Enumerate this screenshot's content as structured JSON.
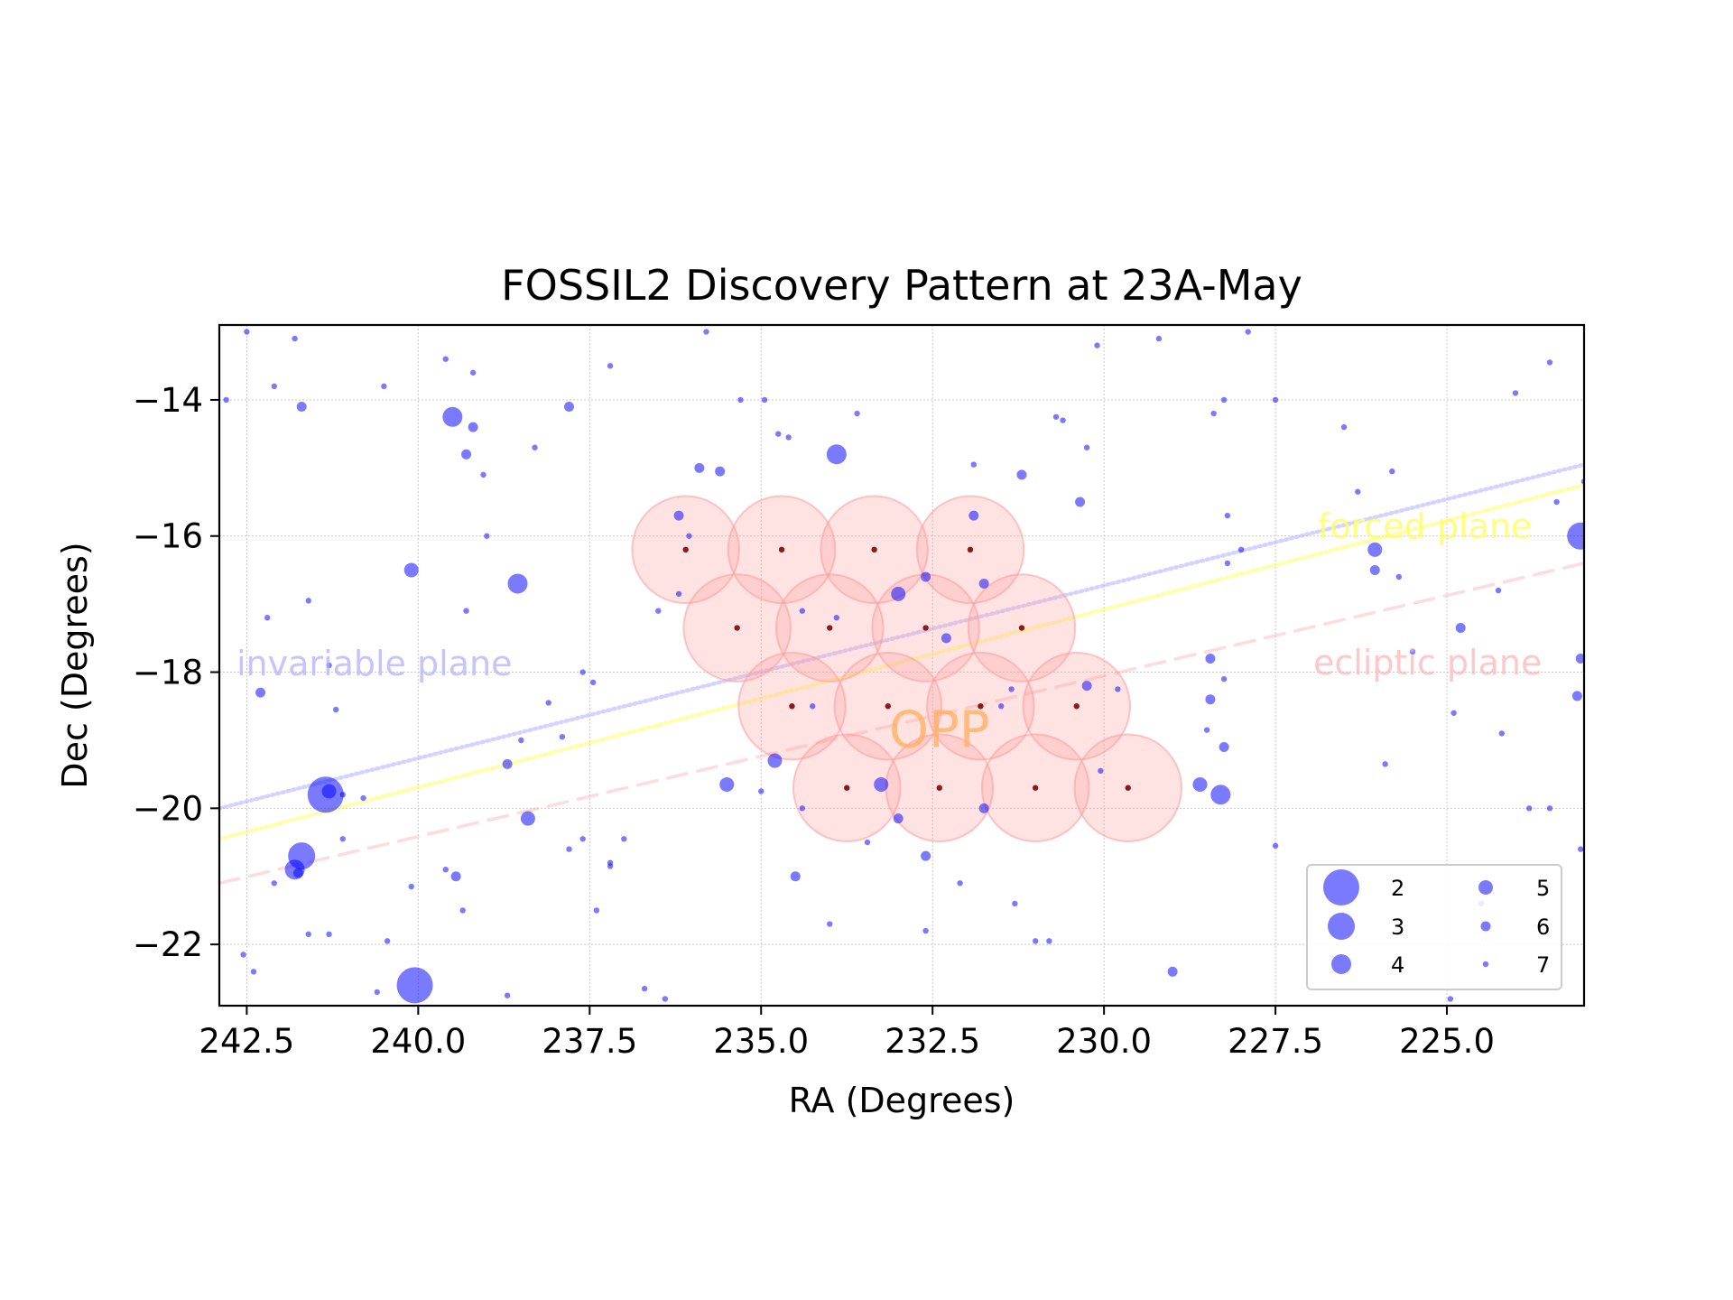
{
  "chart_data": {
    "type": "scatter",
    "title": "FOSSIL2 Discovery Pattern at 23A-May",
    "xlabel": "RA (Degrees)",
    "ylabel": "Dec (Degrees)",
    "xlim": [
      242.9,
      223.0
    ],
    "ylim": [
      -22.9,
      -12.9
    ],
    "x_ticks": [
      242.5,
      240.0,
      237.5,
      235.0,
      232.5,
      230.0,
      227.5,
      225.0
    ],
    "x_tick_labels": [
      "242.5",
      "240.0",
      "237.5",
      "235.0",
      "232.5",
      "230.0",
      "227.5",
      "225.0"
    ],
    "y_ticks": [
      -14,
      -16,
      -18,
      -20,
      -22
    ],
    "y_tick_labels": [
      "−14",
      "−16",
      "−18",
      "−20",
      "−22"
    ],
    "grid": true,
    "colors": {
      "stars": "#0000ff",
      "fields": "#ff9999",
      "field_centers": "#8b1a1a",
      "invariable": "#b0b0ff",
      "forced": "#ffff66",
      "ecliptic": "#ffb0b0",
      "opp": "#ffb060"
    },
    "planes": [
      {
        "label": "invariable plane",
        "x": [
          242.9,
          223.0
        ],
        "y": [
          -20.0,
          -14.95
        ],
        "style": "dotted"
      },
      {
        "label": "forced plane",
        "x": [
          242.9,
          223.0
        ],
        "y": [
          -20.45,
          -15.25
        ],
        "style": "dotted"
      },
      {
        "label": "ecliptic plane",
        "x": [
          242.9,
          223.0
        ],
        "y": [
          -21.1,
          -16.4
        ],
        "style": "dashed"
      }
    ],
    "annotation": {
      "text": "OPP",
      "x": 232.4,
      "y": -19.1
    },
    "fields": {
      "radius_deg": 0.78,
      "centers": [
        [
          236.1,
          -16.2
        ],
        [
          234.7,
          -16.2
        ],
        [
          233.35,
          -16.2
        ],
        [
          231.95,
          -16.2
        ],
        [
          235.35,
          -17.35
        ],
        [
          234.0,
          -17.35
        ],
        [
          232.6,
          -17.35
        ],
        [
          231.2,
          -17.35
        ],
        [
          234.55,
          -18.5
        ],
        [
          233.15,
          -18.5
        ],
        [
          231.8,
          -18.5
        ],
        [
          230.4,
          -18.5
        ],
        [
          233.75,
          -19.7
        ],
        [
          232.4,
          -19.7
        ],
        [
          231.0,
          -19.7
        ],
        [
          229.65,
          -19.7
        ]
      ]
    },
    "legend": {
      "location": "lower right",
      "columns": 2,
      "entries": [
        {
          "label": "2",
          "mag": 2
        },
        {
          "label": "3",
          "mag": 3
        },
        {
          "label": "4",
          "mag": 4
        },
        {
          "label": "5",
          "mag": 5
        },
        {
          "label": "6",
          "mag": 6
        },
        {
          "label": "7",
          "mag": 7
        }
      ]
    },
    "stars": [
      [
        240.05,
        -22.6,
        2
      ],
      [
        238.7,
        -22.75,
        7
      ],
      [
        240.6,
        -22.7,
        7
      ],
      [
        241.35,
        -19.8,
        2
      ],
      [
        241.3,
        -19.75,
        5
      ],
      [
        241.1,
        -19.8,
        7
      ],
      [
        240.8,
        -19.85,
        7
      ],
      [
        241.7,
        -20.7,
        3
      ],
      [
        241.8,
        -20.9,
        4
      ],
      [
        241.75,
        -20.95,
        6
      ],
      [
        242.1,
        -21.1,
        7
      ],
      [
        242.3,
        -18.3,
        6
      ],
      [
        242.2,
        -17.2,
        7
      ],
      [
        242.5,
        -13.0,
        7
      ],
      [
        242.1,
        -13.8,
        7
      ],
      [
        241.7,
        -14.1,
        6
      ],
      [
        241.8,
        -13.1,
        7
      ],
      [
        242.8,
        -14.0,
        7
      ],
      [
        242.55,
        -22.15,
        7
      ],
      [
        242.4,
        -22.4,
        7
      ],
      [
        241.6,
        -21.85,
        7
      ],
      [
        241.3,
        -21.85,
        7
      ],
      [
        241.2,
        -18.55,
        7
      ],
      [
        241.3,
        -17.9,
        7
      ],
      [
        241.6,
        -16.95,
        7
      ],
      [
        240.5,
        -13.8,
        7
      ],
      [
        240.1,
        -16.5,
        5
      ],
      [
        239.5,
        -14.25,
        4
      ],
      [
        239.2,
        -14.4,
        6
      ],
      [
        239.3,
        -14.8,
        6
      ],
      [
        239.05,
        -15.1,
        7
      ],
      [
        239.0,
        -16.0,
        7
      ],
      [
        239.2,
        -13.6,
        7
      ],
      [
        239.6,
        -13.4,
        7
      ],
      [
        239.3,
        -17.1,
        7
      ],
      [
        238.55,
        -16.7,
        4
      ],
      [
        238.3,
        -14.7,
        7
      ],
      [
        237.8,
        -14.1,
        6
      ],
      [
        237.2,
        -13.5,
        7
      ],
      [
        237.6,
        -18.0,
        7
      ],
      [
        237.45,
        -18.15,
        7
      ],
      [
        238.1,
        -18.45,
        7
      ],
      [
        237.9,
        -18.95,
        7
      ],
      [
        238.4,
        -20.15,
        5
      ],
      [
        238.7,
        -19.35,
        6
      ],
      [
        238.5,
        -19.0,
        7
      ],
      [
        239.6,
        -20.9,
        7
      ],
      [
        239.45,
        -21.0,
        6
      ],
      [
        239.35,
        -21.5,
        7
      ],
      [
        240.45,
        -21.95,
        7
      ],
      [
        240.1,
        -21.15,
        7
      ],
      [
        241.1,
        -20.45,
        7
      ],
      [
        237.8,
        -20.6,
        7
      ],
      [
        237.6,
        -20.45,
        7
      ],
      [
        237.2,
        -20.8,
        7
      ],
      [
        237.0,
        -20.45,
        7
      ],
      [
        236.7,
        -22.65,
        7
      ],
      [
        237.4,
        -21.5,
        7
      ],
      [
        236.4,
        -22.8,
        7
      ],
      [
        235.8,
        -13.0,
        7
      ],
      [
        236.5,
        -17.1,
        7
      ],
      [
        236.2,
        -16.85,
        7
      ],
      [
        236.2,
        -15.7,
        6
      ],
      [
        236.05,
        -16.0,
        7
      ],
      [
        235.9,
        -15.0,
        6
      ],
      [
        235.3,
        -14.0,
        7
      ],
      [
        234.95,
        -14.0,
        7
      ],
      [
        234.75,
        -14.5,
        7
      ],
      [
        234.6,
        -14.55,
        7
      ],
      [
        233.9,
        -14.8,
        4
      ],
      [
        233.6,
        -14.2,
        7
      ],
      [
        234.4,
        -17.1,
        7
      ],
      [
        233.9,
        -17.2,
        7
      ],
      [
        234.25,
        -18.5,
        7
      ],
      [
        234.4,
        -20.0,
        7
      ],
      [
        234.8,
        -19.3,
        5
      ],
      [
        235.5,
        -19.65,
        5
      ],
      [
        235.0,
        -19.75,
        7
      ],
      [
        234.5,
        -21.0,
        6
      ],
      [
        234.0,
        -21.7,
        7
      ],
      [
        233.45,
        -20.5,
        7
      ],
      [
        232.6,
        -21.8,
        7
      ],
      [
        233.25,
        -19.65,
        5
      ],
      [
        233.0,
        -20.15,
        6
      ],
      [
        233.0,
        -16.85,
        5
      ],
      [
        232.6,
        -16.6,
        6
      ],
      [
        232.3,
        -17.5,
        6
      ],
      [
        231.9,
        -15.7,
        6
      ],
      [
        231.75,
        -16.7,
        6
      ],
      [
        231.5,
        -18.5,
        7
      ],
      [
        231.75,
        -20.0,
        6
      ],
      [
        232.1,
        -21.1,
        7
      ],
      [
        232.6,
        -20.7,
        6
      ],
      [
        231.9,
        -14.95,
        7
      ],
      [
        231.2,
        -15.1,
        6
      ],
      [
        230.7,
        -14.25,
        7
      ],
      [
        230.6,
        -14.3,
        7
      ],
      [
        230.1,
        -13.2,
        7
      ],
      [
        230.25,
        -14.7,
        7
      ],
      [
        229.2,
        -13.1,
        7
      ],
      [
        230.35,
        -15.5,
        6
      ],
      [
        230.25,
        -18.2,
        6
      ],
      [
        229.8,
        -18.25,
        7
      ],
      [
        230.05,
        -19.45,
        7
      ],
      [
        229.0,
        -22.4,
        6
      ],
      [
        231.0,
        -21.95,
        7
      ],
      [
        231.3,
        -21.4,
        7
      ],
      [
        230.8,
        -21.95,
        7
      ],
      [
        228.4,
        -14.2,
        7
      ],
      [
        228.25,
        -14.0,
        7
      ],
      [
        227.9,
        -13.0,
        7
      ],
      [
        227.5,
        -14.0,
        7
      ],
      [
        226.5,
        -14.4,
        7
      ],
      [
        226.3,
        -15.35,
        7
      ],
      [
        225.8,
        -15.05,
        7
      ],
      [
        225.7,
        -16.6,
        7
      ],
      [
        226.05,
        -16.2,
        5
      ],
      [
        226.05,
        -16.5,
        6
      ],
      [
        225.5,
        -17.7,
        7
      ],
      [
        224.8,
        -17.35,
        6
      ],
      [
        224.25,
        -16.8,
        7
      ],
      [
        224.0,
        -13.9,
        7
      ],
      [
        223.5,
        -13.45,
        7
      ],
      [
        223.05,
        -16.0,
        3
      ],
      [
        223.0,
        -15.2,
        7
      ],
      [
        223.4,
        -15.5,
        7
      ],
      [
        223.05,
        -17.8,
        6
      ],
      [
        223.1,
        -18.35,
        6
      ],
      [
        223.05,
        -20.6,
        7
      ],
      [
        223.5,
        -20.0,
        7
      ],
      [
        223.8,
        -20.0,
        7
      ],
      [
        224.2,
        -18.9,
        7
      ],
      [
        224.5,
        -21.4,
        7
      ],
      [
        224.9,
        -18.6,
        7
      ],
      [
        224.95,
        -22.8,
        7
      ],
      [
        225.9,
        -19.35,
        7
      ],
      [
        227.5,
        -20.55,
        7
      ],
      [
        228.6,
        -19.65,
        5
      ],
      [
        228.3,
        -19.8,
        4
      ],
      [
        228.25,
        -19.1,
        6
      ],
      [
        228.5,
        -18.85,
        7
      ],
      [
        228.45,
        -18.4,
        6
      ],
      [
        228.45,
        -17.8,
        6
      ],
      [
        228.25,
        -18.1,
        7
      ],
      [
        228.0,
        -16.2,
        7
      ],
      [
        228.2,
        -16.4,
        7
      ],
      [
        228.2,
        -15.7,
        7
      ],
      [
        235.6,
        -15.05,
        6
      ],
      [
        237.2,
        -20.85,
        7
      ],
      [
        231.35,
        -18.25,
        7
      ]
    ]
  }
}
